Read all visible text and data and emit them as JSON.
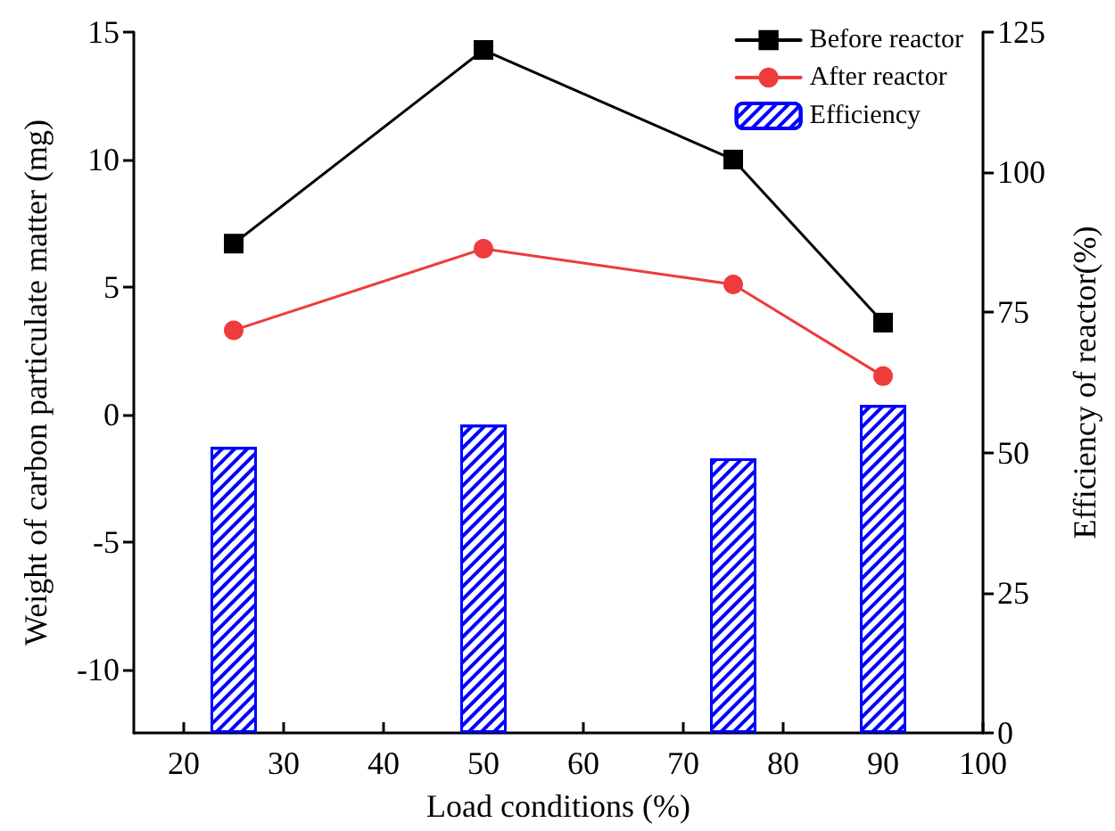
{
  "chart_data": {
    "type": "line",
    "xlabel": "Load conditions (%)",
    "ylabel": "Weight of carbon particulate matter (mg)",
    "y2label": "Efficiency of reactor(%)",
    "x": [
      25,
      50,
      75,
      90
    ],
    "series": [
      {
        "name": "Before reactor",
        "color": "#000000",
        "marker": "square",
        "values": [
          6.7,
          14.3,
          10.0,
          3.6
        ]
      },
      {
        "name": "After reactor",
        "color": "#ee3b3b",
        "marker": "circle",
        "values": [
          3.3,
          6.5,
          5.1,
          1.5
        ]
      },
      {
        "name": "Efficiency",
        "type": "bar",
        "axis": "y2",
        "color": "#0000ff",
        "values": [
          51,
          55,
          49,
          58.5
        ]
      }
    ],
    "xlim": [
      15,
      100
    ],
    "xticks": [
      20,
      30,
      40,
      50,
      60,
      70,
      80,
      90,
      100
    ],
    "ylim": [
      -12.5,
      15
    ],
    "yticks": [
      -10,
      -5,
      0,
      5,
      10,
      15
    ],
    "y2lim": [
      0,
      125
    ],
    "y2ticks": [
      0,
      25,
      50,
      75,
      100,
      125
    ],
    "grid": false,
    "legend": "top right",
    "line_style": "solid"
  }
}
